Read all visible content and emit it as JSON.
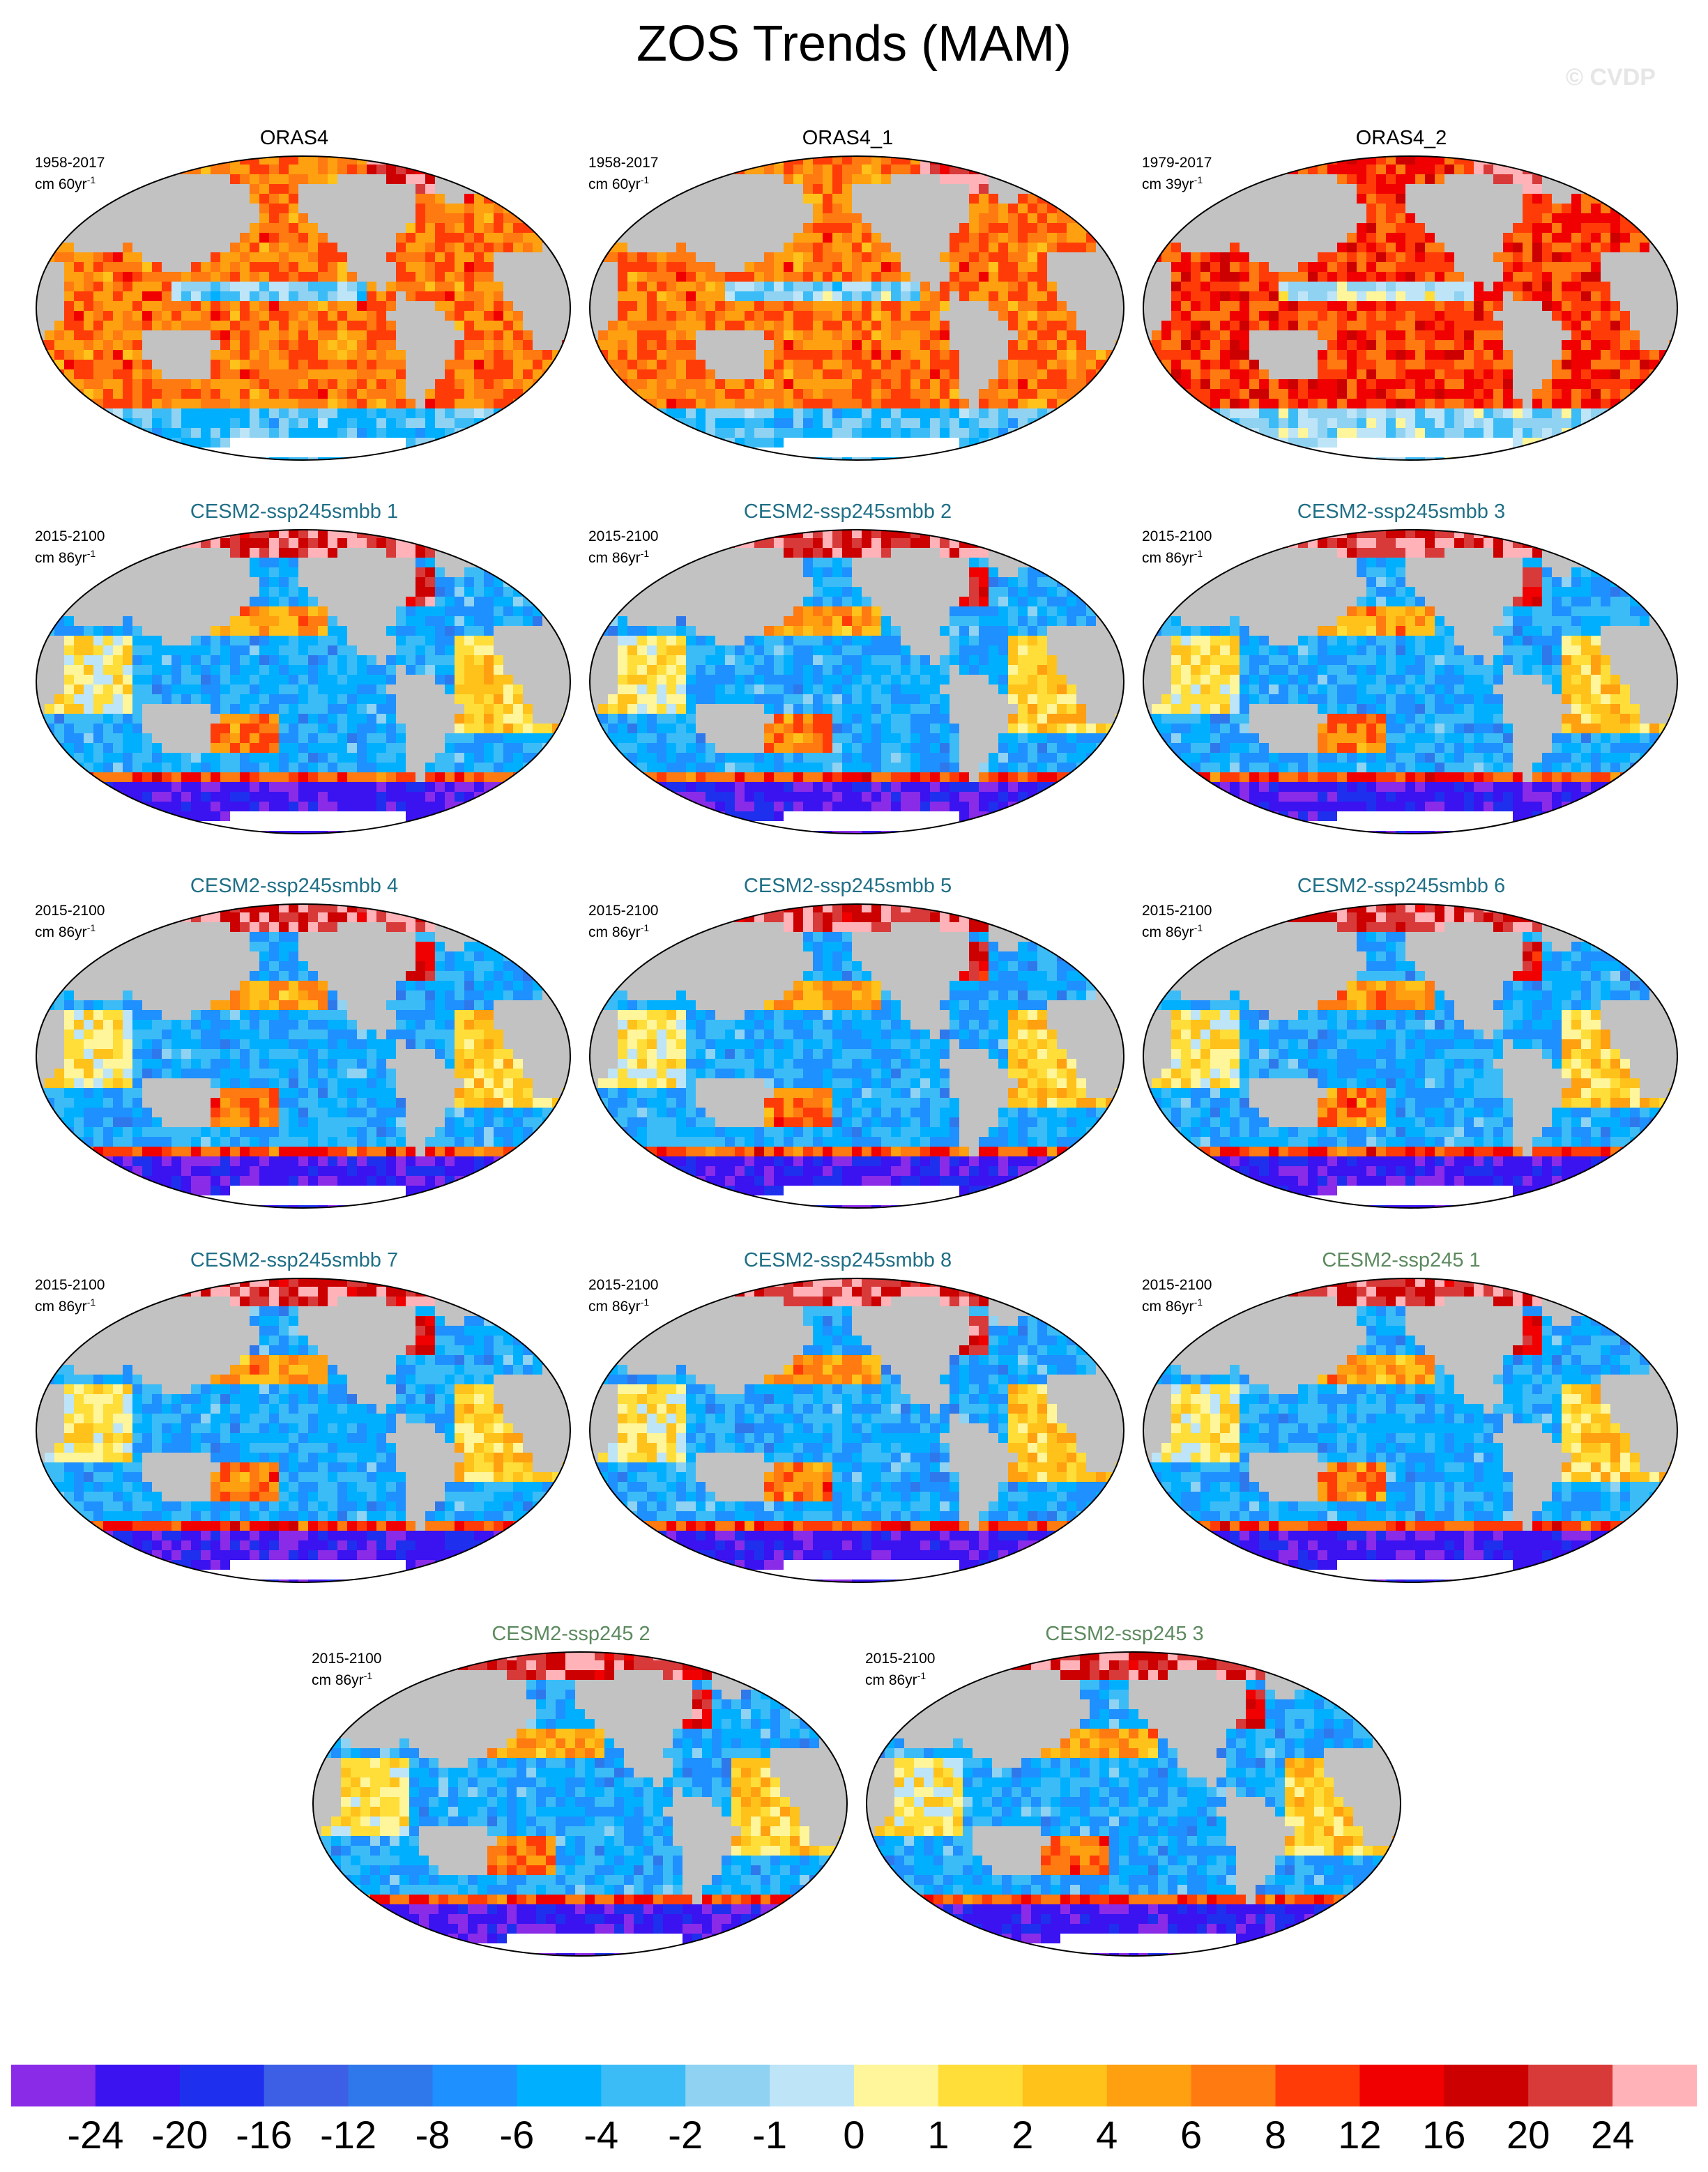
{
  "figure": {
    "title": "ZOS Trends (MAM)",
    "watermark": "© CVDP"
  },
  "colors": {
    "land": "#c2c2c2",
    "ice": "#ffffff",
    "obs_title": "#000000",
    "smbb_title": "#206f86",
    "ssp245_title": "#5d8a5f",
    "map_outline": "#000000"
  },
  "panels": [
    {
      "title": "ORAS4",
      "group": "obs",
      "period": "1958-2017",
      "units_prefix": "cm 60yr",
      "units_exp": "-1",
      "pattern": "obs"
    },
    {
      "title": "ORAS4_1",
      "group": "obs",
      "period": "1958-2017",
      "units_prefix": "cm 60yr",
      "units_exp": "-1",
      "pattern": "obs"
    },
    {
      "title": "ORAS4_2",
      "group": "obs",
      "period": "1979-2017",
      "units_prefix": "cm 39yr",
      "units_exp": "-1",
      "pattern": "obs2"
    },
    {
      "title": "CESM2-ssp245smbb 1",
      "group": "smbb",
      "period": "2015-2100",
      "units_prefix": "cm 86yr",
      "units_exp": "-1",
      "pattern": "model"
    },
    {
      "title": "CESM2-ssp245smbb 2",
      "group": "smbb",
      "period": "2015-2100",
      "units_prefix": "cm 86yr",
      "units_exp": "-1",
      "pattern": "model"
    },
    {
      "title": "CESM2-ssp245smbb 3",
      "group": "smbb",
      "period": "2015-2100",
      "units_prefix": "cm 86yr",
      "units_exp": "-1",
      "pattern": "model"
    },
    {
      "title": "CESM2-ssp245smbb 4",
      "group": "smbb",
      "period": "2015-2100",
      "units_prefix": "cm 86yr",
      "units_exp": "-1",
      "pattern": "model"
    },
    {
      "title": "CESM2-ssp245smbb 5",
      "group": "smbb",
      "period": "2015-2100",
      "units_prefix": "cm 86yr",
      "units_exp": "-1",
      "pattern": "model"
    },
    {
      "title": "CESM2-ssp245smbb 6",
      "group": "smbb",
      "period": "2015-2100",
      "units_prefix": "cm 86yr",
      "units_exp": "-1",
      "pattern": "model"
    },
    {
      "title": "CESM2-ssp245smbb 7",
      "group": "smbb",
      "period": "2015-2100",
      "units_prefix": "cm 86yr",
      "units_exp": "-1",
      "pattern": "model"
    },
    {
      "title": "CESM2-ssp245smbb 8",
      "group": "smbb",
      "period": "2015-2100",
      "units_prefix": "cm 86yr",
      "units_exp": "-1",
      "pattern": "model"
    },
    {
      "title": "CESM2-ssp245 1",
      "group": "ssp245",
      "period": "2015-2100",
      "units_prefix": "cm 86yr",
      "units_exp": "-1",
      "pattern": "model"
    },
    {
      "title": "CESM2-ssp245 2",
      "group": "ssp245",
      "period": "2015-2100",
      "units_prefix": "cm 86yr",
      "units_exp": "-1",
      "pattern": "model"
    },
    {
      "title": "CESM2-ssp245 3",
      "group": "ssp245",
      "period": "2015-2100",
      "units_prefix": "cm 86yr",
      "units_exp": "-1",
      "pattern": "model"
    }
  ],
  "colorbar": {
    "labels": [
      "-24",
      "-20",
      "-16",
      "-12",
      "-8",
      "-6",
      "-4",
      "-2",
      "-1",
      "0",
      "1",
      "2",
      "4",
      "6",
      "8",
      "12",
      "16",
      "20",
      "24"
    ],
    "colors": [
      "#8a2be8",
      "#3b12f0",
      "#1f2fee",
      "#3d5fe6",
      "#2f78ec",
      "#1e90ff",
      "#00b0ff",
      "#3cbcf6",
      "#90d2f2",
      "#bde4f7",
      "#fff59a",
      "#ffde3a",
      "#ffc21a",
      "#ffa010",
      "#ff7a10",
      "#ff3c08",
      "#f00000",
      "#cc0000",
      "#d83a3a",
      "#ffb3b8"
    ]
  }
}
